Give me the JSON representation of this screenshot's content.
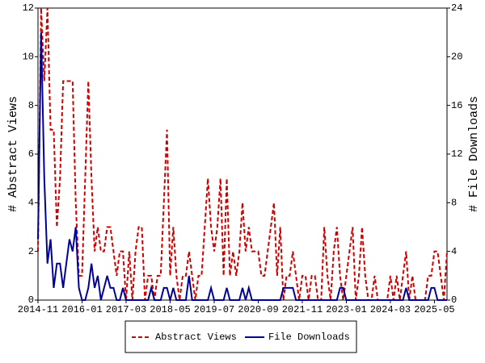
{
  "chart_data": {
    "type": "line",
    "y_label": "# Abstract Views",
    "y2_label": "# File Downloads",
    "x": [
      "2014-11",
      "2014-12",
      "2015-01",
      "2015-02",
      "2015-03",
      "2015-04",
      "2015-05",
      "2015-06",
      "2015-07",
      "2015-08",
      "2015-09",
      "2015-10",
      "2015-11",
      "2015-12",
      "2016-01",
      "2016-02",
      "2016-03",
      "2016-04",
      "2016-05",
      "2016-06",
      "2016-07",
      "2016-08",
      "2016-09",
      "2016-10",
      "2016-11",
      "2016-12",
      "2017-01",
      "2017-02",
      "2017-03",
      "2017-04",
      "2017-05",
      "2017-06",
      "2017-07",
      "2017-08",
      "2017-09",
      "2017-10",
      "2017-11",
      "2017-12",
      "2018-01",
      "2018-02",
      "2018-03",
      "2018-04",
      "2018-05",
      "2018-06",
      "2018-07",
      "2018-08",
      "2018-09",
      "2018-10",
      "2018-11",
      "2018-12",
      "2019-01",
      "2019-02",
      "2019-03",
      "2019-04",
      "2019-05",
      "2019-06",
      "2019-07",
      "2019-08",
      "2019-09",
      "2019-10",
      "2019-11",
      "2019-12",
      "2020-01",
      "2020-02",
      "2020-03",
      "2020-04",
      "2020-05",
      "2020-06",
      "2020-07",
      "2020-08",
      "2020-09",
      "2020-10",
      "2020-11",
      "2020-12",
      "2021-01",
      "2021-02",
      "2021-03",
      "2021-04",
      "2021-05",
      "2021-06",
      "2021-07",
      "2021-08",
      "2021-09",
      "2021-10",
      "2021-11",
      "2021-12",
      "2022-01",
      "2022-02",
      "2022-03",
      "2022-04",
      "2022-05",
      "2022-06",
      "2022-07",
      "2022-08",
      "2022-09",
      "2022-10",
      "2022-11",
      "2022-12",
      "2023-01",
      "2023-02",
      "2023-03",
      "2023-04",
      "2023-05",
      "2023-06",
      "2023-07",
      "2023-08",
      "2023-09",
      "2023-10",
      "2023-11",
      "2023-12",
      "2024-01",
      "2024-02",
      "2024-03",
      "2024-04",
      "2024-05",
      "2024-06",
      "2024-07",
      "2024-08",
      "2024-09",
      "2024-10",
      "2024-11",
      "2024-12",
      "2025-01",
      "2025-02",
      "2025-03",
      "2025-04",
      "2025-05",
      "2025-06",
      "2025-07",
      "2025-08",
      "2025-09"
    ],
    "xticks": [
      "2014-11",
      "2016-01",
      "2017-03",
      "2018-05",
      "2019-07",
      "2020-09",
      "2021-11",
      "2023-01",
      "2024-03",
      "2025-05"
    ],
    "ylim": [
      0,
      12
    ],
    "yticks": [
      0,
      2,
      4,
      6,
      8,
      10,
      12
    ],
    "y2lim": [
      0,
      24
    ],
    "y2ticks": [
      0,
      4,
      8,
      12,
      16,
      20,
      24
    ],
    "series": [
      {
        "name": "Abstract Views",
        "color": "#cc0000",
        "dash": true,
        "values": [
          2,
          12,
          9,
          12,
          7,
          7,
          3,
          5,
          9,
          9,
          9,
          9,
          4,
          1,
          1,
          5,
          9,
          5,
          2,
          3,
          2,
          2,
          3,
          3,
          2,
          1,
          2,
          2,
          0,
          2,
          0,
          2,
          3,
          3,
          0,
          1,
          1,
          0,
          1,
          1,
          4,
          7,
          1,
          3,
          1,
          0,
          1,
          1,
          2,
          1,
          0,
          1,
          1,
          3,
          5,
          3,
          2,
          3,
          5,
          1,
          5,
          1,
          2,
          1,
          2,
          4,
          2,
          3,
          2,
          2,
          2,
          1,
          1,
          2,
          3,
          4,
          1,
          3,
          0,
          1,
          1,
          2,
          1,
          0,
          1,
          1,
          0,
          1,
          1,
          0,
          0,
          3,
          1,
          0,
          2,
          3,
          1,
          0,
          1,
          2,
          3,
          0,
          1,
          3,
          1,
          0,
          0,
          1,
          0,
          0,
          0,
          0,
          1,
          0,
          1,
          0,
          1,
          2,
          0,
          1,
          0,
          0,
          0,
          0,
          1,
          1,
          2,
          2,
          1,
          0,
          2
        ]
      },
      {
        "name": "File Downloads",
        "color": "#000099",
        "axis": "y2",
        "values": [
          5,
          22,
          10,
          3,
          5,
          1,
          3,
          3,
          1,
          3,
          5,
          4,
          6,
          1,
          0,
          0,
          1,
          3,
          1,
          2,
          0,
          1,
          2,
          1,
          1,
          0,
          0,
          1,
          0,
          0,
          0,
          0,
          0,
          0,
          0,
          0,
          1,
          0,
          0,
          0,
          1,
          1,
          0,
          1,
          0,
          0,
          0,
          0,
          2,
          0,
          0,
          0,
          0,
          0,
          0,
          1,
          0,
          0,
          0,
          0,
          1,
          0,
          0,
          0,
          0,
          1,
          0,
          1,
          0,
          0,
          0,
          0,
          0,
          0,
          0,
          0,
          0,
          0,
          1,
          1,
          1,
          1,
          0,
          0,
          0,
          0,
          0,
          0,
          0,
          0,
          0,
          0,
          0,
          0,
          0,
          0,
          1,
          1,
          0,
          0,
          0,
          0,
          0,
          0,
          0,
          0,
          0,
          0,
          0,
          0,
          0,
          0,
          0,
          0,
          0,
          0,
          0,
          1,
          0,
          0,
          0,
          0,
          0,
          0,
          0,
          1,
          1,
          0,
          0,
          0,
          0
        ]
      }
    ]
  }
}
